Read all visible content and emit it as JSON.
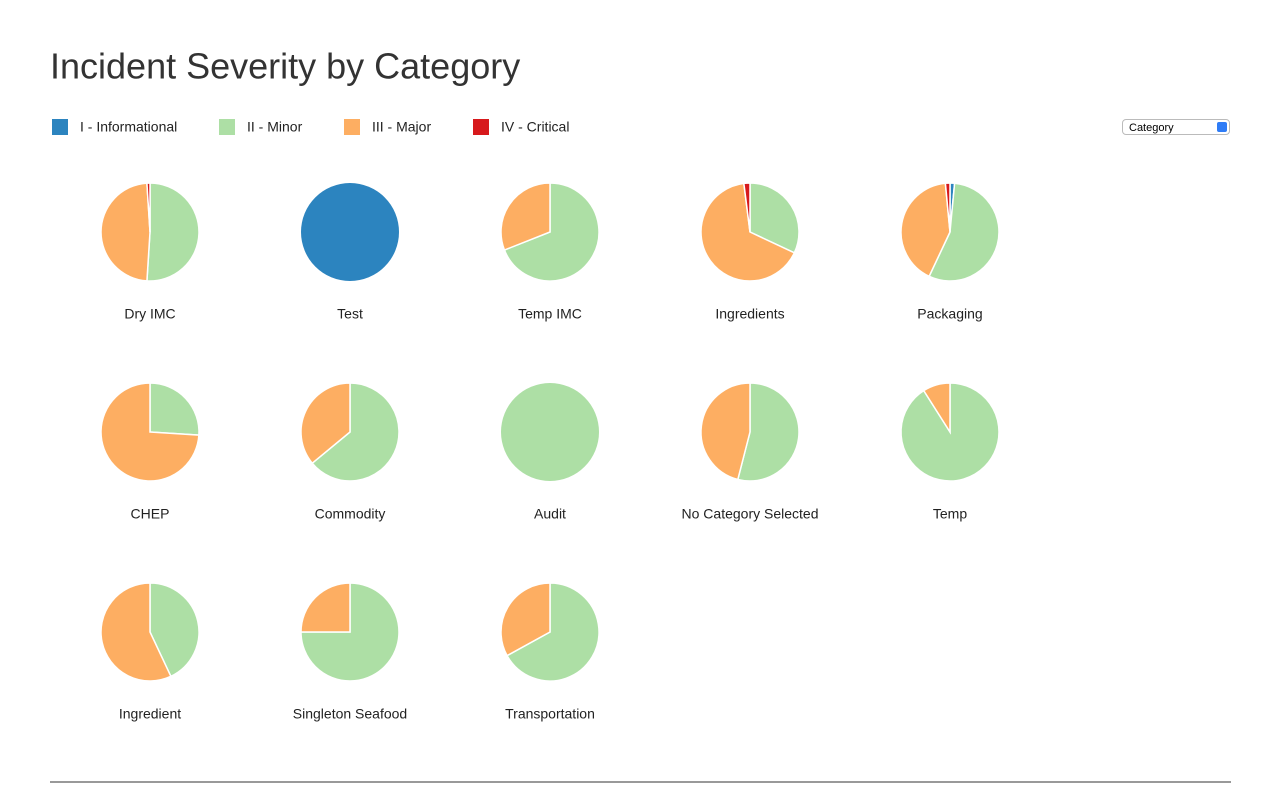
{
  "title": "Incident Severity by Category",
  "select": "Category",
  "legend": [
    {
      "name": "I - Informational",
      "color": "#2c84bf"
    },
    {
      "name": "II - Minor",
      "color": "#addfa5"
    },
    {
      "name": "III - Major",
      "color": "#fdae62"
    },
    {
      "name": "IV - Critical",
      "color": "#d7191c"
    }
  ],
  "chart_data": [
    {
      "type": "pie",
      "title": "Dry IMC",
      "values": [
        0,
        51,
        48,
        1
      ]
    },
    {
      "type": "pie",
      "title": "Test",
      "values": [
        100,
        0,
        0,
        0
      ]
    },
    {
      "type": "pie",
      "title": "Temp IMC",
      "values": [
        0,
        69,
        31,
        0
      ]
    },
    {
      "type": "pie",
      "title": "Ingredients",
      "values": [
        0,
        32,
        66,
        2
      ]
    },
    {
      "type": "pie",
      "title": "Packaging",
      "values": [
        1.5,
        55.5,
        41.5,
        1.5
      ]
    },
    {
      "type": "pie",
      "title": "CHEP",
      "values": [
        0,
        26,
        74,
        0
      ]
    },
    {
      "type": "pie",
      "title": "Commodity",
      "values": [
        0,
        64,
        36,
        0
      ]
    },
    {
      "type": "pie",
      "title": "Audit",
      "values": [
        0,
        100,
        0,
        0
      ]
    },
    {
      "type": "pie",
      "title": "No Category Selected",
      "values": [
        0,
        54,
        46,
        0
      ]
    },
    {
      "type": "pie",
      "title": "Temp",
      "values": [
        0,
        91,
        9,
        0
      ]
    },
    {
      "type": "pie",
      "title": "Ingredient",
      "values": [
        0,
        43,
        57,
        0
      ]
    },
    {
      "type": "pie",
      "title": "Singleton Seafood",
      "values": [
        0,
        75,
        25,
        0
      ]
    },
    {
      "type": "pie",
      "title": "Transportation",
      "values": [
        0,
        67,
        33,
        0
      ]
    }
  ]
}
